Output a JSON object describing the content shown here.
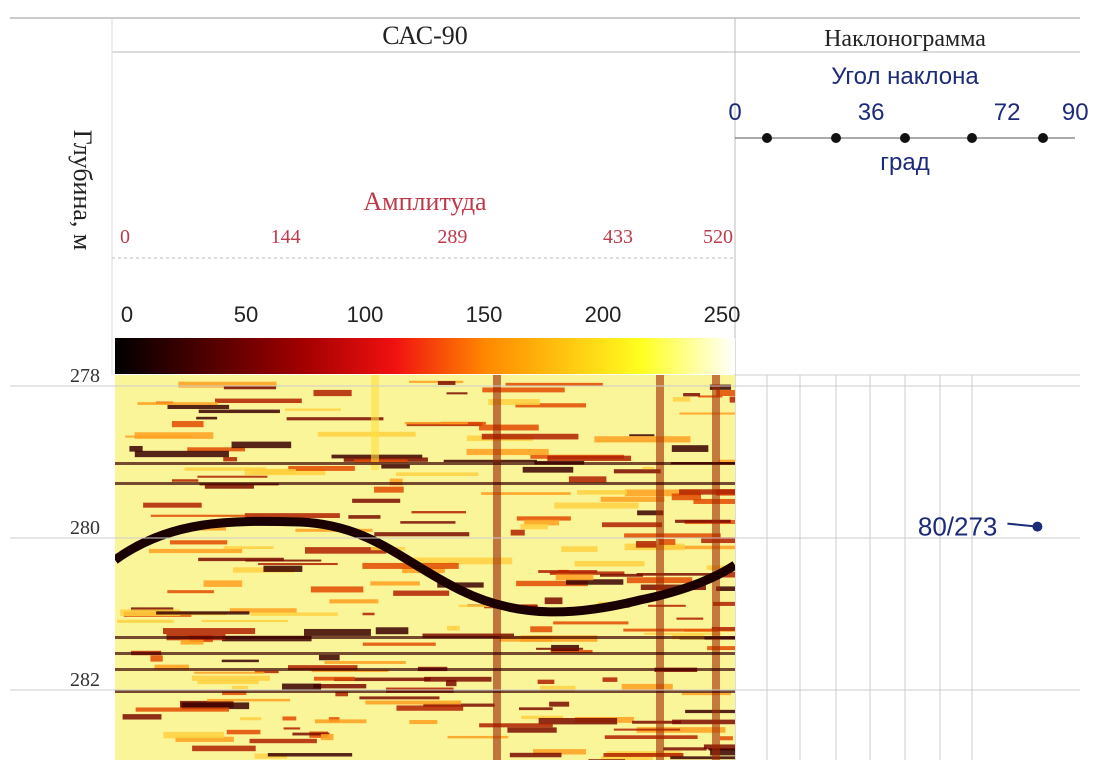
{
  "header": {
    "depth_title": "Глубина, м",
    "image_track": "САС-90",
    "dip_track": "Наклонограмма"
  },
  "amplitude": {
    "title": "Амплитуда",
    "ticks": [
      0,
      144,
      289,
      433,
      520
    ]
  },
  "colorbar": {
    "ticks": [
      0,
      50,
      100,
      150,
      200,
      250
    ]
  },
  "dip_scale": {
    "title": "Угол наклона",
    "unit": "град",
    "ticks": [
      0,
      36,
      72,
      90
    ]
  },
  "depth_ticks": [
    278,
    280,
    282
  ],
  "dips": [
    {
      "label": "80/273",
      "dip": 80,
      "depth": 279.85
    }
  ]
}
